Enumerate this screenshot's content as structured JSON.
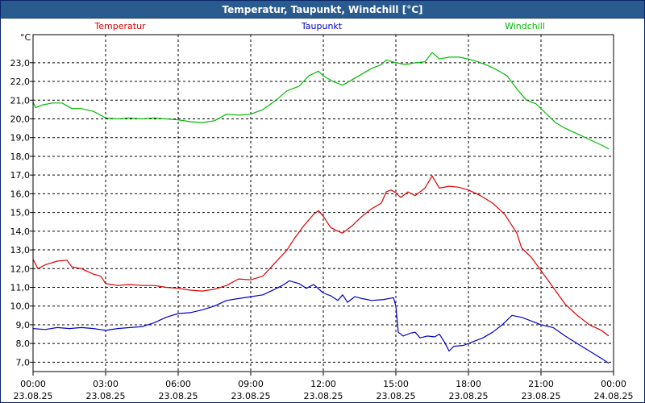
{
  "window": {
    "title": "Temperatur, Taupunkt, Windchill [°C]"
  },
  "chart_data": {
    "type": "line",
    "title": "Temperatur, Taupunkt, Windchill [°C]",
    "ylabel": "°C",
    "xlabel": "",
    "xlim": [
      0,
      24
    ],
    "ylim": [
      6.5,
      24.5
    ],
    "y_ticks": [
      "7,0",
      "8,0",
      "9,0",
      "10,0",
      "11,0",
      "12,0",
      "13,0",
      "14,0",
      "15,0",
      "16,0",
      "17,0",
      "18,0",
      "19,0",
      "20,0",
      "21,0",
      "22,0",
      "23,0"
    ],
    "x_ticks": [
      {
        "time": "00:00",
        "date": "23.08.25"
      },
      {
        "time": "03:00",
        "date": "23.08.25"
      },
      {
        "time": "06:00",
        "date": "23.08.25"
      },
      {
        "time": "09:00",
        "date": "23.08.25"
      },
      {
        "time": "12:00",
        "date": "23.08.25"
      },
      {
        "time": "15:00",
        "date": "23.08.25"
      },
      {
        "time": "18:00",
        "date": "23.08.25"
      },
      {
        "time": "21:00",
        "date": "23.08.25"
      },
      {
        "time": "00:00",
        "date": "24.08.25"
      }
    ],
    "grid": true,
    "series": [
      {
        "name": "Temperatur",
        "color": "#dd0000",
        "points": [
          [
            0.0,
            12.5
          ],
          [
            0.2,
            12.0
          ],
          [
            0.5,
            12.2
          ],
          [
            1.0,
            12.4
          ],
          [
            1.4,
            12.45
          ],
          [
            1.6,
            12.1
          ],
          [
            2.0,
            12.0
          ],
          [
            2.5,
            11.7
          ],
          [
            2.8,
            11.6
          ],
          [
            3.0,
            11.2
          ],
          [
            3.5,
            11.1
          ],
          [
            4.0,
            11.15
          ],
          [
            4.5,
            11.1
          ],
          [
            5.0,
            11.1
          ],
          [
            5.5,
            11.0
          ],
          [
            6.0,
            10.95
          ],
          [
            6.5,
            10.85
          ],
          [
            7.0,
            10.8
          ],
          [
            7.5,
            10.9
          ],
          [
            8.0,
            11.1
          ],
          [
            8.5,
            11.45
          ],
          [
            9.0,
            11.4
          ],
          [
            9.5,
            11.6
          ],
          [
            10.0,
            12.3
          ],
          [
            10.5,
            13.0
          ],
          [
            10.8,
            13.6
          ],
          [
            11.2,
            14.3
          ],
          [
            11.6,
            14.9
          ],
          [
            11.8,
            15.1
          ],
          [
            12.0,
            14.8
          ],
          [
            12.3,
            14.2
          ],
          [
            12.6,
            14.0
          ],
          [
            12.8,
            13.9
          ],
          [
            13.2,
            14.3
          ],
          [
            13.6,
            14.8
          ],
          [
            14.0,
            15.2
          ],
          [
            14.4,
            15.5
          ],
          [
            14.6,
            16.1
          ],
          [
            14.8,
            16.2
          ],
          [
            15.0,
            16.05
          ],
          [
            15.2,
            15.8
          ],
          [
            15.5,
            16.1
          ],
          [
            15.8,
            15.9
          ],
          [
            16.2,
            16.3
          ],
          [
            16.5,
            16.95
          ],
          [
            16.8,
            16.3
          ],
          [
            17.2,
            16.4
          ],
          [
            17.6,
            16.35
          ],
          [
            18.0,
            16.2
          ],
          [
            18.5,
            15.9
          ],
          [
            19.0,
            15.5
          ],
          [
            19.5,
            14.9
          ],
          [
            20.0,
            13.9
          ],
          [
            20.2,
            13.1
          ],
          [
            20.6,
            12.6
          ],
          [
            21.0,
            11.9
          ],
          [
            21.5,
            11.0
          ],
          [
            22.0,
            10.1
          ],
          [
            22.5,
            9.5
          ],
          [
            23.0,
            9.0
          ],
          [
            23.5,
            8.7
          ],
          [
            23.8,
            8.4
          ]
        ]
      },
      {
        "name": "Taupunkt",
        "color": "#0000cc",
        "points": [
          [
            0.0,
            8.8
          ],
          [
            0.5,
            8.75
          ],
          [
            1.0,
            8.85
          ],
          [
            1.5,
            8.8
          ],
          [
            2.0,
            8.85
          ],
          [
            2.5,
            8.8
          ],
          [
            3.0,
            8.7
          ],
          [
            3.5,
            8.8
          ],
          [
            4.0,
            8.85
          ],
          [
            4.5,
            8.9
          ],
          [
            5.0,
            9.1
          ],
          [
            5.5,
            9.4
          ],
          [
            6.0,
            9.6
          ],
          [
            6.5,
            9.65
          ],
          [
            7.0,
            9.8
          ],
          [
            7.5,
            10.0
          ],
          [
            8.0,
            10.3
          ],
          [
            8.5,
            10.4
          ],
          [
            9.0,
            10.5
          ],
          [
            9.5,
            10.6
          ],
          [
            10.0,
            10.9
          ],
          [
            10.3,
            11.1
          ],
          [
            10.6,
            11.35
          ],
          [
            11.0,
            11.2
          ],
          [
            11.3,
            10.95
          ],
          [
            11.6,
            11.15
          ],
          [
            12.0,
            10.7
          ],
          [
            12.3,
            10.55
          ],
          [
            12.6,
            10.3
          ],
          [
            12.8,
            10.6
          ],
          [
            13.0,
            10.2
          ],
          [
            13.3,
            10.5
          ],
          [
            13.6,
            10.4
          ],
          [
            14.0,
            10.3
          ],
          [
            14.5,
            10.35
          ],
          [
            14.9,
            10.45
          ],
          [
            15.0,
            10.0
          ],
          [
            15.1,
            8.6
          ],
          [
            15.3,
            8.4
          ],
          [
            15.6,
            8.55
          ],
          [
            15.8,
            8.6
          ],
          [
            16.0,
            8.3
          ],
          [
            16.3,
            8.4
          ],
          [
            16.6,
            8.35
          ],
          [
            16.8,
            8.5
          ],
          [
            17.0,
            8.1
          ],
          [
            17.2,
            7.6
          ],
          [
            17.4,
            7.85
          ],
          [
            17.8,
            7.9
          ],
          [
            18.2,
            8.1
          ],
          [
            18.6,
            8.3
          ],
          [
            19.0,
            8.6
          ],
          [
            19.4,
            9.0
          ],
          [
            19.8,
            9.5
          ],
          [
            20.2,
            9.4
          ],
          [
            20.6,
            9.2
          ],
          [
            21.0,
            9.0
          ],
          [
            21.5,
            8.85
          ],
          [
            22.0,
            8.4
          ],
          [
            22.5,
            8.0
          ],
          [
            23.0,
            7.6
          ],
          [
            23.5,
            7.2
          ],
          [
            23.8,
            6.95
          ]
        ]
      },
      {
        "name": "Windchill",
        "color": "#00bb00",
        "points": [
          [
            0.0,
            20.9
          ],
          [
            0.1,
            20.6
          ],
          [
            0.4,
            20.75
          ],
          [
            0.8,
            20.85
          ],
          [
            1.2,
            20.85
          ],
          [
            1.6,
            20.55
          ],
          [
            2.0,
            20.55
          ],
          [
            2.5,
            20.4
          ],
          [
            3.0,
            20.05
          ],
          [
            3.5,
            20.0
          ],
          [
            4.0,
            20.05
          ],
          [
            4.5,
            20.0
          ],
          [
            5.0,
            20.05
          ],
          [
            5.5,
            20.0
          ],
          [
            6.0,
            19.95
          ],
          [
            6.5,
            19.85
          ],
          [
            7.0,
            19.8
          ],
          [
            7.5,
            19.9
          ],
          [
            8.0,
            20.25
          ],
          [
            8.5,
            20.2
          ],
          [
            9.0,
            20.25
          ],
          [
            9.5,
            20.5
          ],
          [
            10.0,
            20.95
          ],
          [
            10.5,
            21.5
          ],
          [
            11.0,
            21.75
          ],
          [
            11.4,
            22.3
          ],
          [
            11.8,
            22.55
          ],
          [
            12.0,
            22.3
          ],
          [
            12.4,
            22.0
          ],
          [
            12.8,
            21.8
          ],
          [
            13.2,
            22.1
          ],
          [
            13.6,
            22.4
          ],
          [
            14.0,
            22.7
          ],
          [
            14.4,
            22.9
          ],
          [
            14.6,
            23.15
          ],
          [
            15.0,
            23.0
          ],
          [
            15.4,
            22.9
          ],
          [
            15.8,
            23.0
          ],
          [
            16.2,
            23.05
          ],
          [
            16.5,
            23.55
          ],
          [
            16.8,
            23.2
          ],
          [
            17.2,
            23.3
          ],
          [
            17.6,
            23.3
          ],
          [
            18.0,
            23.2
          ],
          [
            18.4,
            23.05
          ],
          [
            18.8,
            22.85
          ],
          [
            19.2,
            22.6
          ],
          [
            19.6,
            22.3
          ],
          [
            20.0,
            21.6
          ],
          [
            20.4,
            21.0
          ],
          [
            20.8,
            20.8
          ],
          [
            21.2,
            20.3
          ],
          [
            21.6,
            19.8
          ],
          [
            22.0,
            19.5
          ],
          [
            22.5,
            19.2
          ],
          [
            23.0,
            18.9
          ],
          [
            23.5,
            18.6
          ],
          [
            23.8,
            18.4
          ]
        ]
      }
    ]
  }
}
